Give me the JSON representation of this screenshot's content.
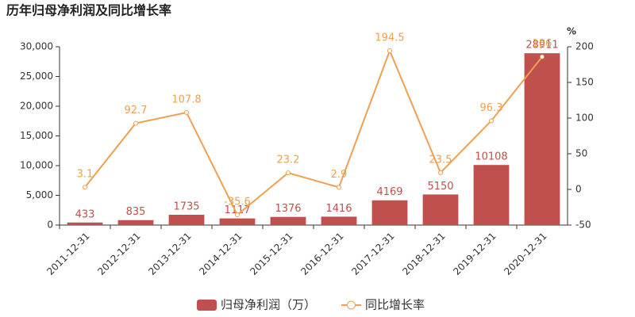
{
  "chart_data": {
    "type": "bar-line",
    "title": "历年归母净利润及同比增长率",
    "y2_label": "%",
    "categories": [
      "2011-12-31",
      "2012-12-31",
      "2013-12-31",
      "2014-12-31",
      "2015-12-31",
      "2016-12-31",
      "2017-12-31",
      "2018-12-31",
      "2019-12-31",
      "2020-12-31"
    ],
    "series": [
      {
        "name": "归母净利润（万）",
        "color": "#c0504d",
        "type": "bar",
        "values": [
          433,
          835,
          1735,
          1117,
          1376,
          1416,
          4169,
          5150,
          10108,
          28911
        ]
      },
      {
        "name": "同比增长率",
        "color": "#f0a050",
        "type": "line",
        "axis": "y2",
        "values": [
          3.1,
          92.7,
          107.8,
          -35.6,
          23.2,
          2.9,
          194.5,
          23.5,
          96.3,
          186
        ]
      }
    ],
    "ylim": [
      0,
      30000
    ],
    "yticks": [
      0,
      {
        "value": 5000,
        "label": "5,000"
      },
      {
        "value": 10000,
        "label": "10,000"
      },
      {
        "value": 15000,
        "label": "15,000"
      },
      {
        "value": 20000,
        "label": "20,000"
      },
      {
        "value": 25000,
        "label": "25,000"
      },
      {
        "value": 30000,
        "label": "30,000"
      }
    ],
    "y2lim": [
      -50,
      200
    ],
    "y2ticks": [
      -50,
      0,
      50,
      100,
      150,
      200
    ],
    "grid": false
  }
}
